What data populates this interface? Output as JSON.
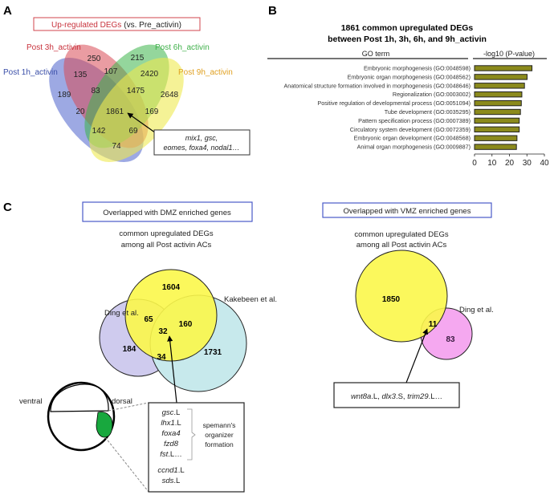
{
  "panel_a": {
    "label": "A",
    "title_main": "Up-regulated DEGs",
    "title_sub": "(vs. Pre_activin)",
    "sets": [
      {
        "name": "Post 1h_activin",
        "color": "#3a4ea8"
      },
      {
        "name": "Post 3h_activin",
        "color": "#d0444e"
      },
      {
        "name": "Post 6h_activin",
        "color": "#3fb04a"
      },
      {
        "name": "Post 9h_activin",
        "color": "#e0a020"
      }
    ],
    "counts": {
      "r250": "250",
      "r215": "215",
      "r135": "135",
      "r107": "107",
      "r2420": "2420",
      "r189": "189",
      "r83": "83",
      "r1475": "1475",
      "r2648": "2648",
      "r20": "20",
      "r1861": "1861",
      "r169": "169",
      "r142": "142",
      "r69": "69",
      "r74": "74"
    },
    "callout_line1": "mix1, gsc,",
    "callout_line2": "eomes, foxa4, nodal1…"
  },
  "panel_b": {
    "label": "B",
    "chart_data": {
      "type": "bar",
      "orientation": "horizontal",
      "title": "1861 common upregulated DEGs between Post 1h, 3h, 6h, and 9h_activin",
      "title_line1": "1861 common upregulated DEGs",
      "title_line2": "between Post 1h, 3h, 6h, and 9h_activin",
      "category_header": "GO term",
      "xlabel": "-log10 (P-value)",
      "xlim": [
        0,
        40
      ],
      "xticks": [
        "0",
        "10",
        "20",
        "30",
        "40"
      ],
      "bar_color": "#8b8a1c",
      "categories": [
        "Embryonic morphogenesis (GO:0048598)",
        "Embryonic organ morphogenesis (GO:0048562)",
        "Anatomical structure formation involved in morphogenesis (GO:0048646)",
        "Regionalization (GO:0003002)",
        "Positive regulation of developmental process (GO:0051094)",
        "Tube development (GO:0035295)",
        "Pattern specification process (GO:0007389)",
        "Circulatory system development (GO:0072359)",
        "Embryonic organ development (GO:0048568)",
        "Animal organ morphogenesis (GO:0009887)"
      ],
      "values": [
        32.9,
        30.1,
        28.6,
        27.1,
        26.8,
        26.3,
        25.6,
        25.6,
        24.3,
        24.0
      ]
    }
  },
  "panel_c": {
    "label": "C",
    "dmz": {
      "title": "Overlapped with DMZ enriched genes",
      "subtitle_line1": "common upregulated DEGs",
      "subtitle_line2": "among all Post activin ACs",
      "set_ding": "Ding et al.",
      "set_kakebeen": "Kakebeen et al.",
      "counts": {
        "only_common": "1604",
        "common_ding": "65",
        "common_kakebeen": "160",
        "all": "32",
        "only_ding": "184",
        "ding_kakebeen": "34",
        "only_kakebeen": "1731"
      },
      "embryo_ventral": "ventral",
      "embryo_dorsal": "dorsal",
      "genes": [
        {
          "name": "gsc",
          "suffix": ".L"
        },
        {
          "name": "lhx1",
          "suffix": ".L"
        },
        {
          "name": "foxa4",
          "suffix": ""
        },
        {
          "name": "fzd8",
          "suffix": ""
        },
        {
          "name": "fst",
          "suffix": ".L…"
        },
        {
          "name": "ccnd1",
          "suffix": ".L"
        },
        {
          "name": "sds",
          "suffix": ".L"
        }
      ],
      "bracket_line1": "spemann's",
      "bracket_line2": "organizer",
      "bracket_line3": "formation"
    },
    "vmz": {
      "title": "Overlapped with VMZ enriched genes",
      "subtitle_line1": "common upregulated DEGs",
      "subtitle_line2": "among all Post activin ACs",
      "set_ding": "Ding et al.",
      "counts": {
        "only_common": "1850",
        "overlap": "11",
        "only_ding": "83"
      },
      "genes": [
        {
          "name": "wnt8a",
          "suffix": ".L, "
        },
        {
          "name": "dlx3",
          "suffix": ".S, "
        },
        {
          "name": "trim29",
          "suffix": ".L…"
        }
      ]
    }
  }
}
